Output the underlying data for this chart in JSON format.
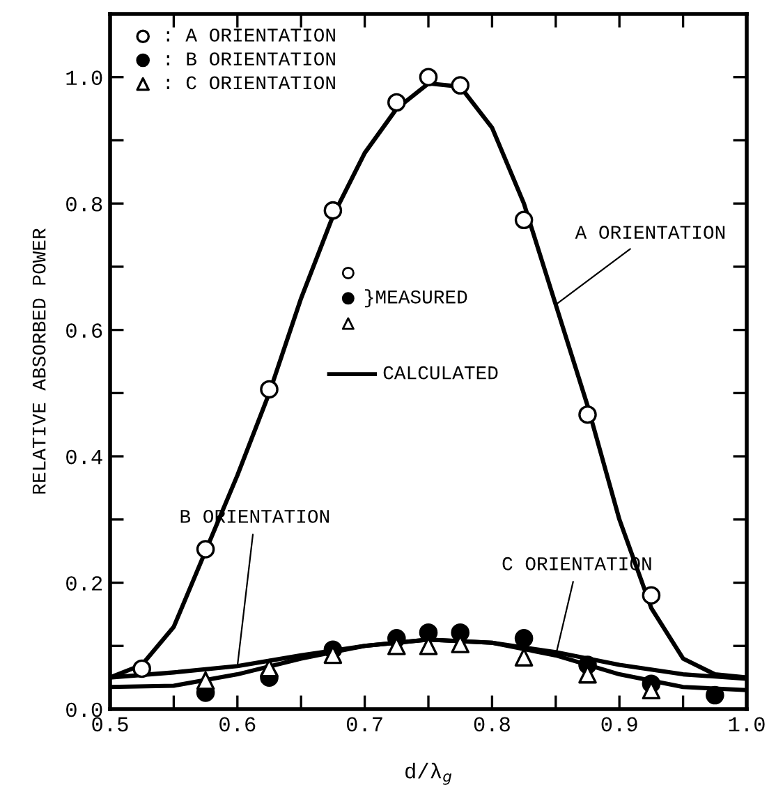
{
  "chart_data": {
    "type": "scatter",
    "xlabel": "d/λ$_{g}$",
    "ylabel": "RELATIVE ABSORBED POWER",
    "xlim": [
      0.5,
      1.0
    ],
    "ylim": [
      0.0,
      1.1
    ],
    "xticks": [
      0.5,
      {
        "value": 0.55,
        "label": null
      },
      0.6,
      {
        "value": 0.65,
        "label": null
      },
      0.7,
      {
        "value": 0.75,
        "label": null
      },
      0.8,
      {
        "value": 0.85,
        "label": null
      },
      0.9,
      {
        "value": 0.95,
        "label": null
      },
      {
        "value": 1.0,
        "label": "1.0"
      }
    ],
    "yticks": [
      {
        "value": 0.0,
        "label": "0.0"
      },
      {
        "value": 0.1,
        "label": null
      },
      0.2,
      {
        "value": 0.3,
        "label": null
      },
      0.4,
      {
        "value": 0.5,
        "label": null
      },
      0.6,
      {
        "value": 0.7,
        "label": null
      },
      0.8,
      {
        "value": 0.9,
        "label": null
      },
      {
        "value": 1.0,
        "label": "1.0"
      }
    ],
    "grid": false,
    "legend": "top left",
    "series": [
      {
        "type": "line",
        "name": "A ORIENTATION",
        "color": "#000000",
        "line_style": "solid",
        "marker": "none",
        "x": [
          0.5,
          0.525,
          0.55,
          0.575,
          0.6,
          0.625,
          0.65,
          0.675,
          0.7,
          0.725,
          0.75,
          0.775,
          0.8,
          0.825,
          0.85,
          0.875,
          0.9,
          0.925,
          0.95,
          0.975,
          1.0
        ],
        "values": [
          0.05,
          0.07,
          0.13,
          0.25,
          0.37,
          0.5,
          0.65,
          0.78,
          0.88,
          0.95,
          0.99,
          0.985,
          0.92,
          0.8,
          0.64,
          0.48,
          0.3,
          0.16,
          0.08,
          0.055,
          0.05
        ]
      },
      {
        "type": "line",
        "name": "C ORIENTATION",
        "color": "#000000",
        "line_style": "solid",
        "marker": "none",
        "x": [
          0.5,
          0.55,
          0.6,
          0.65,
          0.7,
          0.75,
          0.8,
          0.85,
          0.9,
          0.95,
          1.0
        ],
        "values": [
          0.035,
          0.037,
          0.055,
          0.08,
          0.1,
          0.11,
          0.105,
          0.085,
          0.055,
          0.035,
          0.03
        ]
      },
      {
        "type": "line",
        "name": "B ORIENTATION",
        "color": "#000000",
        "line_style": "solid",
        "marker": "none",
        "x": [
          0.5,
          0.55,
          0.6,
          0.65,
          0.7,
          0.75,
          0.8,
          0.85,
          0.9,
          0.95,
          1.0
        ],
        "values": [
          0.05,
          0.058,
          0.068,
          0.085,
          0.1,
          0.11,
          0.105,
          0.09,
          0.07,
          0.055,
          0.048
        ]
      },
      {
        "name": ": A ORIENTATION",
        "marker": "circle",
        "color": "#ffffff",
        "x": [
          0.525,
          0.575,
          0.625,
          0.675,
          0.725,
          0.75,
          0.775,
          0.825,
          0.875,
          0.925
        ],
        "values": [
          0.064,
          0.253,
          0.506,
          0.789,
          0.96,
          1.0,
          0.987,
          0.774,
          0.466,
          0.18
        ]
      },
      {
        "name": ": B ORIENTATION",
        "marker": "circle",
        "color": "#000000",
        "x": [
          0.575,
          0.625,
          0.675,
          0.725,
          0.75,
          0.775,
          0.825,
          0.875,
          0.925,
          0.975
        ],
        "values": [
          0.026,
          0.05,
          0.094,
          0.112,
          0.121,
          0.121,
          0.112,
          0.07,
          0.04,
          0.022
        ]
      },
      {
        "name": ": C ORIENTATION",
        "marker": "triangle",
        "color": "#ffffff",
        "x": [
          0.575,
          0.625,
          0.675,
          0.725,
          0.75,
          0.775,
          0.825,
          0.875,
          0.925
        ],
        "values": [
          0.045,
          0.065,
          0.086,
          0.1,
          0.1,
          0.103,
          0.082,
          0.055,
          0.03
        ]
      }
    ],
    "annotations": [
      "}MEASURED",
      "CALCULATED"
    ]
  }
}
